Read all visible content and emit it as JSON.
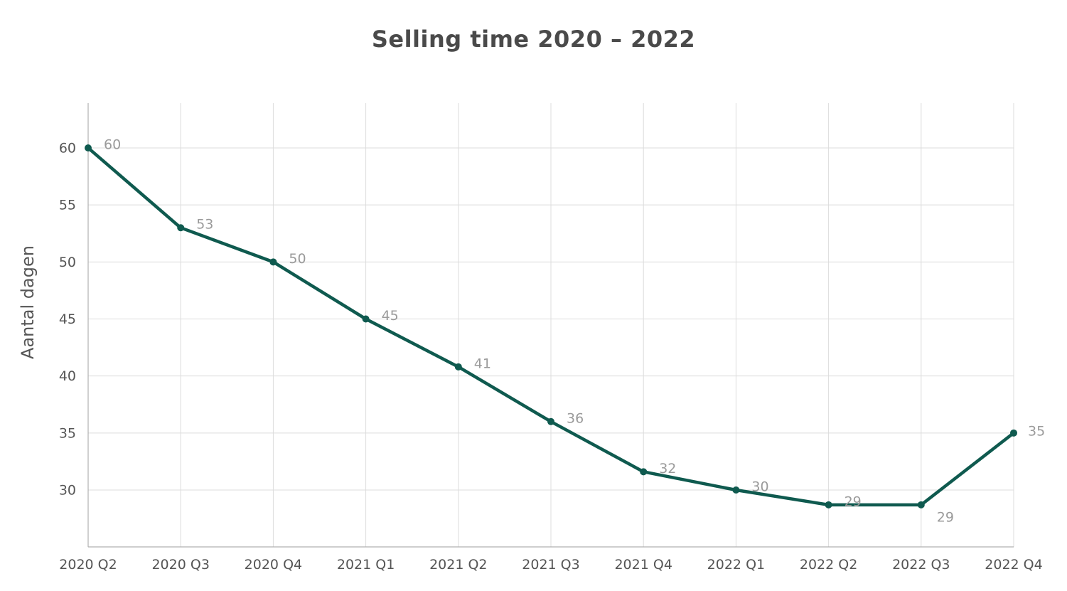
{
  "chart_data": {
    "type": "line",
    "title": "Selling time 2020 – 2022",
    "xlabel": "",
    "ylabel": "Aantal dagen",
    "categories": [
      "2020 Q2",
      "2020 Q3",
      "2020 Q4",
      "2021 Q1",
      "2021 Q2",
      "2021 Q3",
      "2021 Q4",
      "2022 Q1",
      "2022 Q2",
      "2022 Q3",
      "2022 Q4"
    ],
    "series": [
      {
        "values": [
          60,
          53,
          50,
          45,
          40.8,
          36,
          31.6,
          30,
          28.7,
          28.7,
          35
        ],
        "labels": [
          "60",
          "53",
          "50",
          "45",
          "41",
          "36",
          "32",
          "30",
          "29",
          "29",
          "35"
        ],
        "color": "#0f5a4f"
      }
    ],
    "yticks": [
      30,
      35,
      40,
      45,
      50,
      55,
      60
    ],
    "ylim": [
      25,
      64
    ],
    "grid": true,
    "legend": "none"
  }
}
